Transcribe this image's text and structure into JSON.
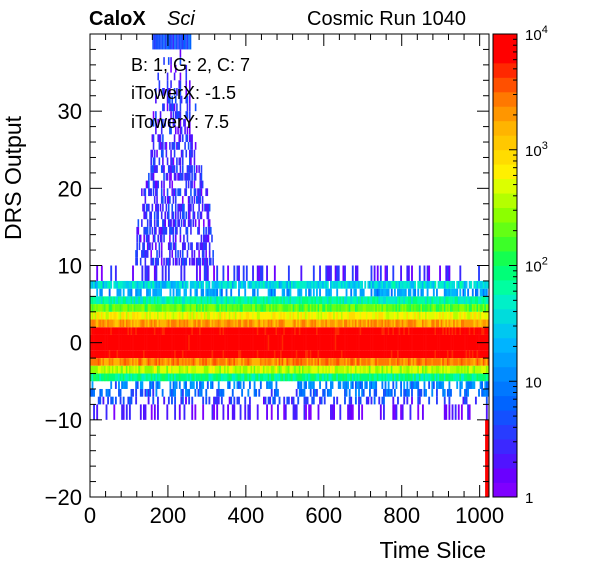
{
  "header": {
    "experiment_bold": "CaloX",
    "experiment_italic": "Sci",
    "run_label": "Cosmic Run 1040"
  },
  "info_box": {
    "line1": "B: 1, G: 2, C: 7",
    "line2": "iTowerX: -1.5",
    "line3": "iTowerY: 7.5"
  },
  "chart_data": {
    "type": "heatmap",
    "title": "",
    "xlabel": "Time Slice",
    "ylabel": "DRS Output",
    "xlim": [
      0,
      1024
    ],
    "ylim": [
      -20,
      40
    ],
    "x_ticks": [
      0,
      200,
      400,
      600,
      800,
      1000
    ],
    "y_ticks": [
      -20,
      -10,
      0,
      10,
      20,
      30
    ],
    "y_tick_labels": [
      "−20",
      "−10",
      "0",
      "10",
      "20",
      "30"
    ],
    "z_scale": "log",
    "zlim": [
      1,
      10000
    ],
    "z_tick_labels": [
      {
        "value": 1,
        "base": "1",
        "exp": ""
      },
      {
        "value": 10,
        "base": "10",
        "exp": ""
      },
      {
        "value": 100,
        "base": "10",
        "exp": "2"
      },
      {
        "value": 1000,
        "base": "10",
        "exp": "3"
      },
      {
        "value": 10000,
        "base": "10",
        "exp": "4"
      }
    ],
    "palette": [
      "#7f00ff",
      "#6a00ff",
      "#5014ff",
      "#3c28ff",
      "#283cff",
      "#1450ff",
      "#0064ff",
      "#0078ff",
      "#008cff",
      "#00a0ff",
      "#00b4ff",
      "#00c8f0",
      "#00dcdc",
      "#00f0c8",
      "#00ffa0",
      "#00ff78",
      "#14ff50",
      "#3cff28",
      "#64ff14",
      "#8cff00",
      "#b4ff00",
      "#dcff00",
      "#fff000",
      "#ffdc00",
      "#ffc800",
      "#ffb400",
      "#ff9600",
      "#ff7800",
      "#ff5000",
      "#ff2800",
      "#ff0000",
      "#ff0000"
    ],
    "bands": [
      {
        "y_range": [
          -1,
          1
        ],
        "x_range": [
          0,
          1024
        ],
        "counts": 10000
      },
      {
        "y_range": [
          -2,
          -1
        ],
        "x_range": [
          0,
          1024
        ],
        "counts": 9000
      },
      {
        "y_range": [
          1,
          2
        ],
        "x_range": [
          0,
          1024
        ],
        "counts": 8000
      },
      {
        "y_range": [
          -3,
          -2
        ],
        "x_range": [
          0,
          1024
        ],
        "counts": 2500
      },
      {
        "y_range": [
          2,
          3
        ],
        "x_range": [
          0,
          1024
        ],
        "counts": 2000
      },
      {
        "y_range": [
          3,
          4
        ],
        "x_range": [
          0,
          1024
        ],
        "counts": 600
      },
      {
        "y_range": [
          -4,
          -3
        ],
        "x_range": [
          0,
          1024
        ],
        "counts": 400
      },
      {
        "y_range": [
          4,
          5
        ],
        "x_range": [
          0,
          1024
        ],
        "counts": 200
      },
      {
        "y_range": [
          -5,
          -4
        ],
        "x_range": [
          0,
          1024
        ],
        "counts": 80
      },
      {
        "y_range": [
          5,
          6
        ],
        "x_range": [
          0,
          1024
        ],
        "counts": 60
      },
      {
        "y_range": [
          6,
          7
        ],
        "x_range": [
          0,
          1024
        ],
        "counts": 12
      },
      {
        "y_range": [
          7,
          8
        ],
        "x_range": [
          0,
          1024
        ],
        "counts": 30
      },
      {
        "y_range": [
          -6,
          -5
        ],
        "x_range": [
          0,
          1024
        ],
        "counts": 8
      },
      {
        "y_range": [
          -7,
          -6
        ],
        "x_range": [
          0,
          1024
        ],
        "counts": 6
      },
      {
        "y_range": [
          -8,
          -7
        ],
        "x_range": [
          0,
          1024
        ],
        "counts": 3
      },
      {
        "y_range": [
          8,
          10
        ],
        "x_range": [
          0,
          1024
        ],
        "counts": 2
      },
      {
        "y_range": [
          -10,
          -8
        ],
        "x_range": [
          0,
          1024
        ],
        "counts": 1.5
      }
    ],
    "pulse": {
      "x_range": [
        110,
        320
      ],
      "peak_x": 215,
      "y_max": 40,
      "counts": 1.5
    },
    "edge_column": {
      "x_range": [
        1014,
        1024
      ],
      "y_range": [
        -20,
        40
      ],
      "counts": 10000
    }
  }
}
